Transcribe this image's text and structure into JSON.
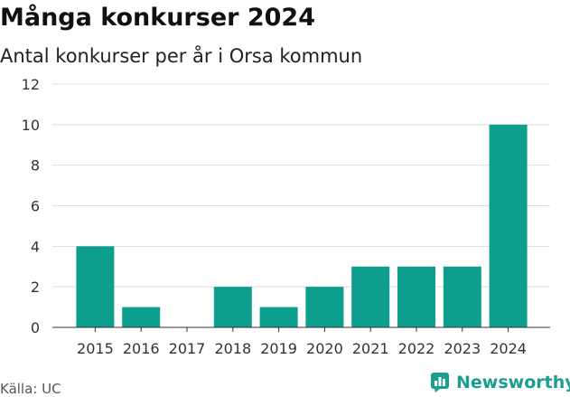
{
  "header": {
    "title": "Många konkurser 2024",
    "subtitle": "Antal konkurser per år i Orsa kommun"
  },
  "footer": {
    "source": "Källa: UC",
    "brand_name": "Newsworthy",
    "brand_icon": "newsworthy-logo-icon"
  },
  "colors": {
    "bar": "#0e9e8e",
    "grid": "#dddddd",
    "axis": "#333333",
    "brand": "#1a9e8f"
  },
  "chart_data": {
    "type": "bar",
    "title": "Många konkurser 2024",
    "subtitle": "Antal konkurser per år i Orsa kommun",
    "categories": [
      "2015",
      "2016",
      "2017",
      "2018",
      "2019",
      "2020",
      "2021",
      "2022",
      "2023",
      "2024"
    ],
    "values": [
      4,
      1,
      0,
      2,
      1,
      2,
      3,
      3,
      3,
      10
    ],
    "xlabel": "",
    "ylabel": "",
    "ylim": [
      0,
      12
    ],
    "yticks": [
      0,
      2,
      4,
      6,
      8,
      10,
      12
    ],
    "grid": true,
    "legend": "none"
  }
}
